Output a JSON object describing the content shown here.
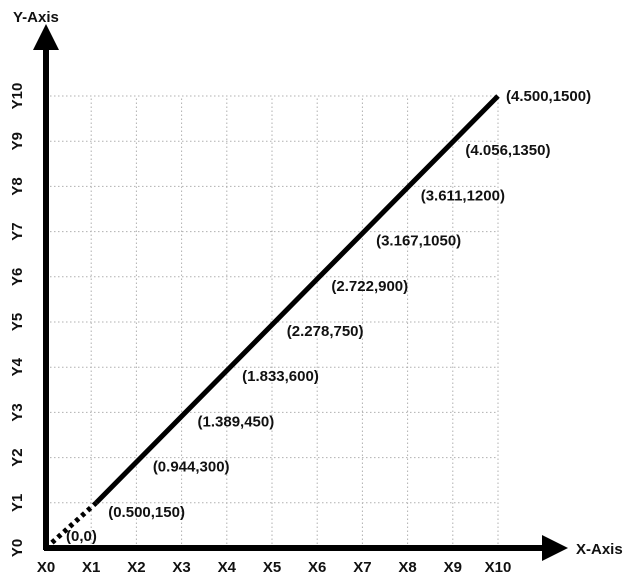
{
  "chart_data": {
    "type": "line",
    "title": "",
    "xlabel": "X-Axis",
    "ylabel": "Y-Axis",
    "x_tick_labels": [
      "X0",
      "X1",
      "X2",
      "X3",
      "X4",
      "X5",
      "X6",
      "X7",
      "X8",
      "X9",
      "X10"
    ],
    "y_tick_labels": [
      "Y0",
      "Y1",
      "Y2",
      "Y3",
      "Y4",
      "Y5",
      "Y6",
      "Y7",
      "Y8",
      "Y9",
      "Y10"
    ],
    "grid": true,
    "series": [
      {
        "x": [
          0,
          0.5,
          0.944,
          1.389,
          1.833,
          2.278,
          2.722,
          3.167,
          3.611,
          4.056,
          4.5
        ],
        "y": [
          0,
          150,
          300,
          450,
          600,
          750,
          900,
          1050,
          1200,
          1350,
          1500
        ],
        "labels": [
          "(0,0)",
          "(0.500,150)",
          "(0.944,300)",
          "(1.389,450)",
          "(1.833,600)",
          "(2.278,750)",
          "(2.722,900)",
          "(3.167,1050)",
          "(3.611,1200)",
          "(4.056,1350)",
          "(4.500,1500)"
        ]
      }
    ],
    "xlim": [
      0,
      4.5
    ],
    "ylim": [
      0,
      1500
    ],
    "first_segment_style": "dotted"
  },
  "colors": {
    "line": "#000000",
    "axis": "#000000",
    "grid": "#b0b0b0",
    "text": "#111111"
  }
}
